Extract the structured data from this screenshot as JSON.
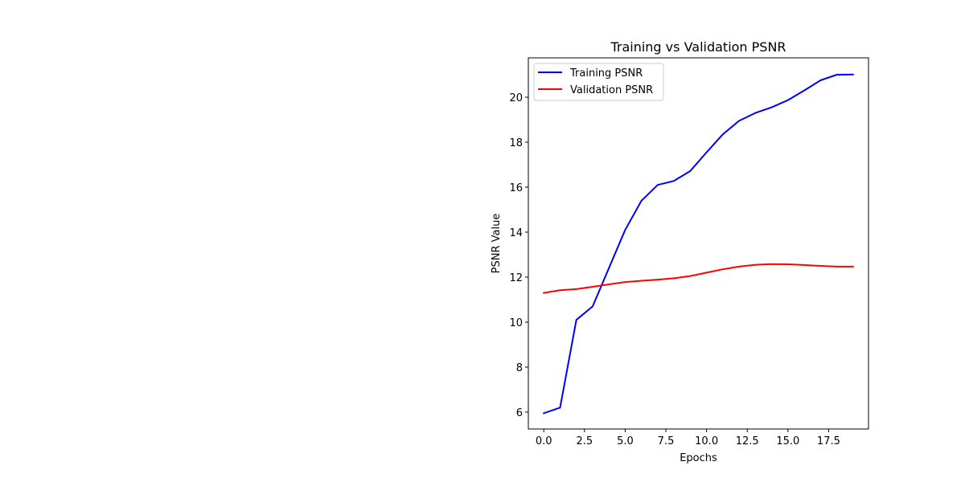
{
  "chart_data": {
    "type": "line",
    "title": "Training vs Validation PSNR",
    "xlabel": "Epochs",
    "ylabel": "PSNR Value",
    "x": [
      0,
      1,
      2,
      3,
      4,
      5,
      6,
      7,
      8,
      9,
      10,
      11,
      12,
      13,
      14,
      15,
      16,
      17,
      18,
      19
    ],
    "xlim": [
      -0.95,
      19.95
    ],
    "ylim": [
      5.25,
      21.75
    ],
    "xticks": [
      0.0,
      2.5,
      5.0,
      7.5,
      10.0,
      12.5,
      15.0,
      17.5
    ],
    "xtick_labels": [
      "0.0",
      "2.5",
      "5.0",
      "7.5",
      "10.0",
      "12.5",
      "15.0",
      "17.5"
    ],
    "yticks": [
      6,
      8,
      10,
      12,
      14,
      16,
      18,
      20
    ],
    "ytick_labels": [
      "6",
      "8",
      "10",
      "12",
      "14",
      "16",
      "18",
      "20"
    ],
    "grid": false,
    "legend_position": "top-left",
    "series": [
      {
        "name": "Training PSNR",
        "color": "#0000ff",
        "values": [
          5.95,
          6.2,
          10.1,
          10.7,
          12.4,
          14.1,
          15.4,
          16.1,
          16.28,
          16.72,
          17.55,
          18.35,
          18.95,
          19.3,
          19.55,
          19.87,
          20.3,
          20.75,
          21.0,
          21.01
        ]
      },
      {
        "name": "Validation PSNR",
        "color": "#ff0000",
        "values": [
          11.3,
          11.42,
          11.47,
          11.57,
          11.68,
          11.78,
          11.84,
          11.89,
          11.95,
          12.05,
          12.2,
          12.35,
          12.47,
          12.55,
          12.58,
          12.57,
          12.54,
          12.5,
          12.47,
          12.47
        ]
      }
    ]
  }
}
